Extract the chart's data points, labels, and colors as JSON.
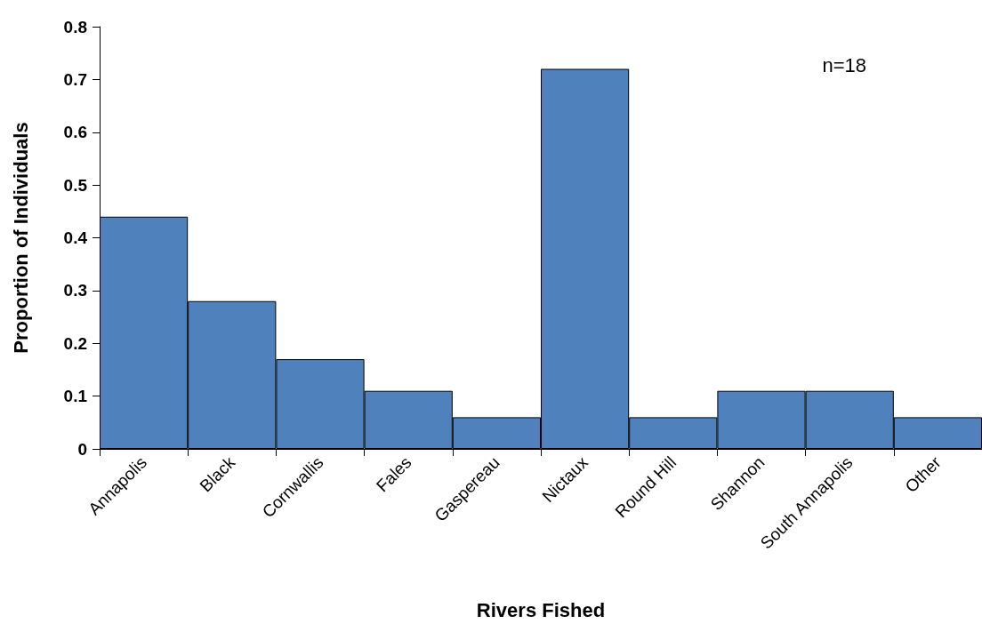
{
  "chart_data": {
    "type": "bar",
    "xlabel": "Rivers Fished",
    "ylabel": "Proportion of Individuals",
    "categories": [
      "Annapolis",
      "Black",
      "Cornwallis",
      "Fales",
      "Gaspereau",
      "Nictaux",
      "Round Hill",
      "Shannon",
      "South Annapolis",
      "Other"
    ],
    "values": [
      0.44,
      0.28,
      0.17,
      0.11,
      0.06,
      0.72,
      0.06,
      0.11,
      0.11,
      0.06
    ],
    "color": "#4f81bd",
    "ylim": [
      0,
      0.8
    ],
    "yticks": [
      0,
      0.1,
      0.2,
      0.3,
      0.4,
      0.5,
      0.6,
      0.7,
      0.8
    ],
    "grid": false,
    "annotations": [
      "n=18"
    ]
  }
}
